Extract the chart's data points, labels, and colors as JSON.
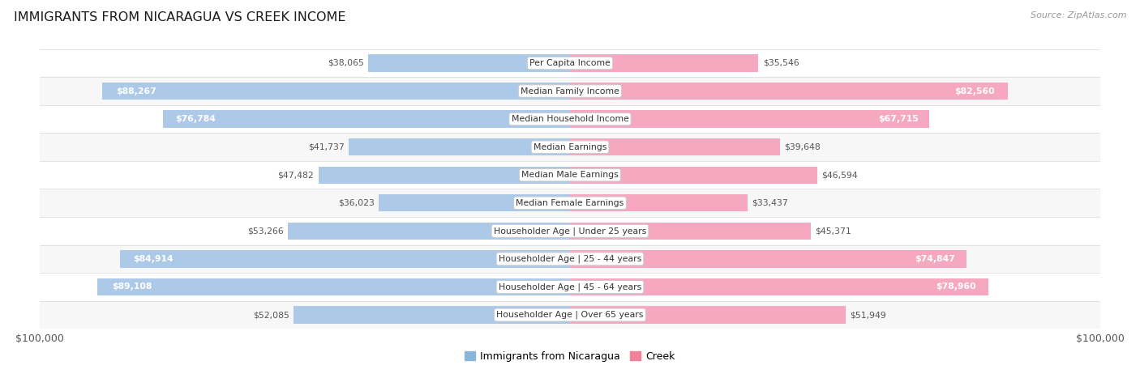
{
  "title": "IMMIGRANTS FROM NICARAGUA VS CREEK INCOME",
  "source": "Source: ZipAtlas.com",
  "categories": [
    "Per Capita Income",
    "Median Family Income",
    "Median Household Income",
    "Median Earnings",
    "Median Male Earnings",
    "Median Female Earnings",
    "Householder Age | Under 25 years",
    "Householder Age | 25 - 44 years",
    "Householder Age | 45 - 64 years",
    "Householder Age | Over 65 years"
  ],
  "nicaragua_values": [
    38065,
    88267,
    76784,
    41737,
    47482,
    36023,
    53266,
    84914,
    89108,
    52085
  ],
  "creek_values": [
    35546,
    82560,
    67715,
    39648,
    46594,
    33437,
    45371,
    74847,
    78960,
    51949
  ],
  "max_val": 100000,
  "blue_color": "#adc9e8",
  "pink_color": "#f5a8bf",
  "label_color": "#555555",
  "title_color": "#1a1a1a",
  "background_color": "#ffffff",
  "row_bg_odd": "#f7f7f7",
  "row_bg_even": "#ffffff",
  "legend_blue": "#8ab4d8",
  "legend_pink": "#f08098",
  "value_inside_threshold": 62000
}
